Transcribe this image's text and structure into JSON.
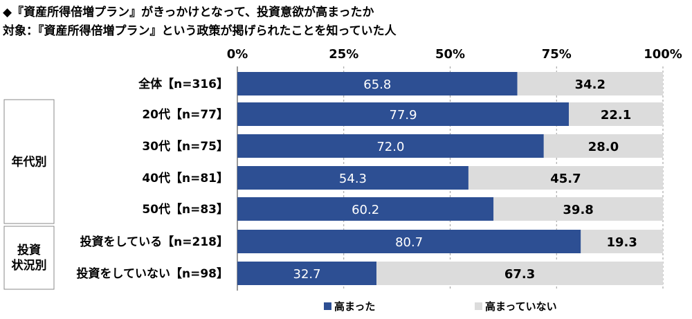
{
  "titles": {
    "line1": "◆『資産所得倍増プラン』がきっかけとなって、投資意欲が高まったか",
    "line2": "対象：『資産所得倍増プラン』という政策が掲げられたことを知っていた人"
  },
  "colors": {
    "series1": "#2d4f93",
    "series2": "#dcdcdc",
    "grid": "#9a9a9a"
  },
  "chart_data": {
    "type": "bar",
    "orientation": "horizontal",
    "stacked": true,
    "xlim": [
      0,
      100
    ],
    "ticks": [
      "0%",
      "25%",
      "50%",
      "75%",
      "100%"
    ],
    "groups": [
      {
        "label": "",
        "rows": [
          0
        ]
      },
      {
        "label": "年代別",
        "rows": [
          1,
          2,
          3,
          4
        ]
      },
      {
        "label": "投資\n状況別",
        "rows": [
          5,
          6
        ]
      }
    ],
    "categories": [
      "全体【n=316】",
      "20代【n=77】",
      "30代【n=75】",
      "40代【n=81】",
      "50代【n=83】",
      "投資をしている【n=218】",
      "投資をしていない【n=98】"
    ],
    "series": [
      {
        "name": "高まった",
        "values": [
          65.8,
          77.9,
          72.0,
          54.3,
          60.2,
          80.7,
          32.7
        ]
      },
      {
        "name": "高まっていない",
        "values": [
          34.2,
          22.1,
          28.0,
          45.7,
          39.8,
          19.3,
          67.3
        ]
      }
    ],
    "value_labels": [
      [
        "65.8",
        "77.9",
        "72.0",
        "54.3",
        "60.2",
        "80.7",
        "32.7"
      ],
      [
        "34.2",
        "22.1",
        "28.0",
        "45.7",
        "39.8",
        "19.3",
        "67.3"
      ]
    ],
    "legend_position": "bottom"
  }
}
